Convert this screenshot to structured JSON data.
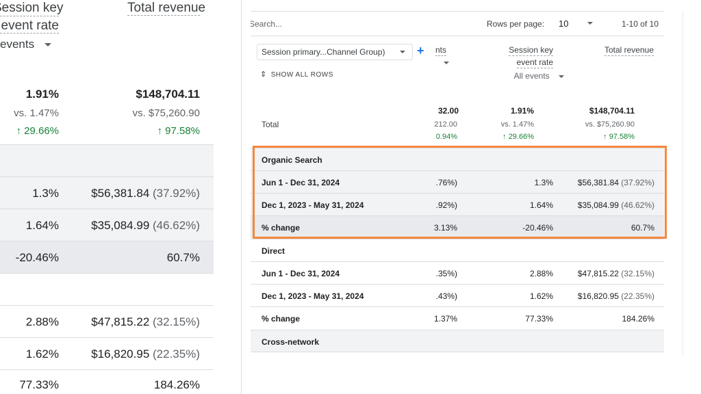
{
  "zoom": {
    "header": {
      "session_key_line1": "Session key",
      "session_key_line2": "event rate",
      "total_revenue": "Total revenue",
      "events_dropdown": "events"
    },
    "totals": {
      "rate": "1.91%",
      "rate_compare": "vs. 1.47%",
      "rate_change": "29.66%",
      "revenue": "$148,704.11",
      "revenue_compare": "vs. $75,260.90",
      "revenue_change": "97.58%"
    },
    "rows": [
      {
        "rate": "1.3%",
        "revenue": "$56,381.84",
        "share": "(37.92%)"
      },
      {
        "rate": "1.64%",
        "revenue": "$35,084.99",
        "share": "(46.62%)"
      },
      {
        "rate": "-20.46%",
        "revenue": "60.7%",
        "share": ""
      },
      {
        "rate": "2.88%",
        "revenue": "$47,815.22",
        "share": "(32.15%)"
      },
      {
        "rate": "1.62%",
        "revenue": "$16,820.95",
        "share": "(22.35%)"
      },
      {
        "rate": "77.33%",
        "revenue": "184.26%",
        "share": ""
      }
    ]
  },
  "table": {
    "search_placeholder": "Search...",
    "rows_per_page_label": "Rows per page:",
    "rows_per_page_value": "10",
    "pagination": "1-10 of 10",
    "dimension_selector": "Session primary...Channel Group)",
    "add_icon": "+",
    "show_all_rows": "SHOW ALL ROWS",
    "col1_header_partial": "nts",
    "col2_header_line1": "Session key",
    "col2_header_line2": "event rate",
    "col2_dropdown": "All events",
    "col3_header": "Total revenue",
    "total": {
      "label": "Total",
      "c1": "32.00",
      "c1_compare": "212.00",
      "c1_change": "0.94%",
      "c2": "1.91%",
      "c2_compare": "vs. 1.47%",
      "c2_change": "29.66%",
      "c3": "$148,704.11",
      "c3_compare": "vs. $75,260.90",
      "c3_change": "97.58%"
    },
    "rows": [
      {
        "label": "Organic Search",
        "c1": "",
        "c2": "",
        "c3": "",
        "share": "",
        "shaded": true
      },
      {
        "label": "Jun 1 - Dec 31, 2024",
        "c1": ".76%)",
        "c2": "1.3%",
        "c3": "$56,381.84",
        "share": "(37.92%)",
        "shaded": true
      },
      {
        "label": "Dec 1, 2023 - May 31, 2024",
        "c1": ".92%)",
        "c2": "1.64%",
        "c3": "$35,084.99",
        "share": "(46.62%)",
        "shaded": true
      },
      {
        "label": "% change",
        "c1": "3.13%",
        "c2": "-20.46%",
        "c3": "60.7%",
        "share": "",
        "shaded": true
      },
      {
        "label": "Direct",
        "c1": "",
        "c2": "",
        "c3": "",
        "share": "",
        "shaded": false
      },
      {
        "label": "Jun 1 - Dec 31, 2024",
        "c1": ".35%)",
        "c2": "2.88%",
        "c3": "$47,815.22",
        "share": "(32.15%)",
        "shaded": false
      },
      {
        "label": "Dec 1, 2023 - May 31, 2024",
        "c1": ".43%)",
        "c2": "1.62%",
        "c3": "$16,820.95",
        "share": "(22.35%)",
        "shaded": false
      },
      {
        "label": "% change",
        "c1": "1.37%",
        "c2": "77.33%",
        "c3": "184.26%",
        "share": "",
        "shaded": false
      },
      {
        "label": "Cross-network",
        "c1": "",
        "c2": "",
        "c3": "",
        "share": "",
        "shaded": true
      }
    ]
  },
  "colors": {
    "highlight": "#f4873c",
    "positive": "#188038",
    "accent": "#1a73e8"
  },
  "icons": [
    "dropdown-arrow-icon",
    "up-arrow-icon",
    "expand-collapse-icon",
    "add-icon"
  ]
}
